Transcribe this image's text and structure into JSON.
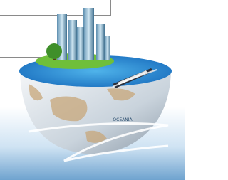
{
  "globe": {
    "label": "OCEANIA"
  }
}
